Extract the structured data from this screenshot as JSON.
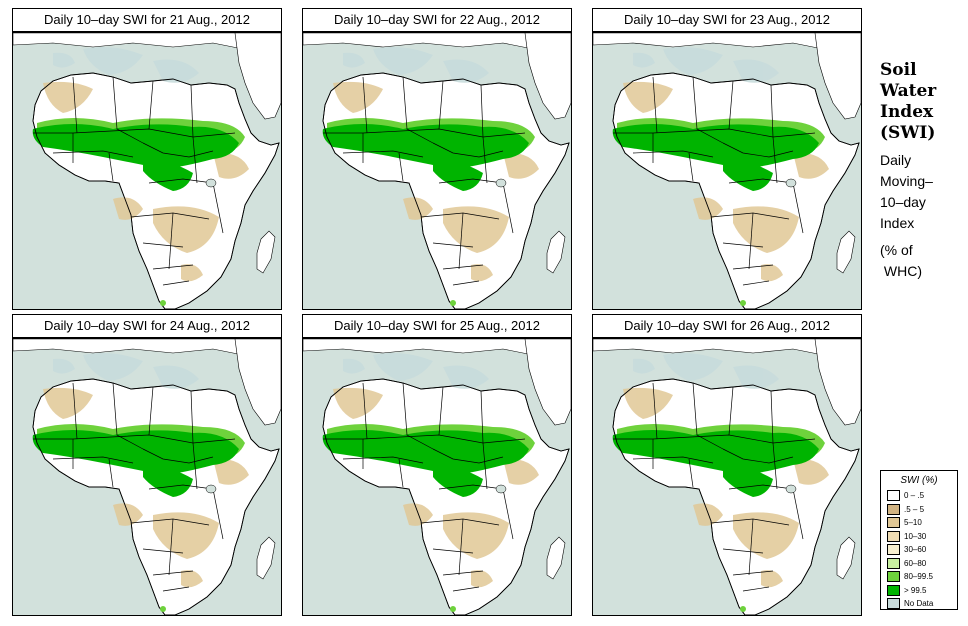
{
  "panels": [
    {
      "title": "Daily 10–day SWI for  21 Aug., 2012"
    },
    {
      "title": "Daily 10–day SWI for  22 Aug., 2012"
    },
    {
      "title": "Daily 10–day SWI for  23 Aug., 2012"
    },
    {
      "title": "Daily 10–day SWI for  24 Aug., 2012"
    },
    {
      "title": "Daily 10–day SWI for  25 Aug., 2012"
    },
    {
      "title": "Daily 10–day SWI for  26 Aug., 2012"
    }
  ],
  "side": {
    "title_lines": [
      "Soil",
      "Water",
      "Index",
      "(SWI)"
    ],
    "subtitle_lines": [
      "Daily",
      "Moving–",
      "10–day",
      "Index"
    ],
    "unit_lines": [
      "(% of",
      " WHC)"
    ]
  },
  "legend": {
    "title": "SWI (%)",
    "items": [
      {
        "label": "0 – .5",
        "color": "#ffffff"
      },
      {
        "label": ".5 – 5",
        "color": "#d2b483"
      },
      {
        "label": "5–10",
        "color": "#e1c896"
      },
      {
        "label": "10–30",
        "color": "#f0ddb4"
      },
      {
        "label": "30–60",
        "color": "#f8f0d0"
      },
      {
        "label": "60–80",
        "color": "#c8f0a0"
      },
      {
        "label": "80–99.5",
        "color": "#6ed23c"
      },
      {
        "label": "> 99.5",
        "color": "#00b400"
      },
      {
        "label": "No Data",
        "color": "#c8dcdc"
      }
    ]
  },
  "colors": {
    "ocean": "#d2e1dc",
    "land": "#ffffff",
    "wet": "#00b400",
    "moist": "#6ed23c",
    "dry": "#e1c896",
    "nodata": "#c8dcdc"
  }
}
